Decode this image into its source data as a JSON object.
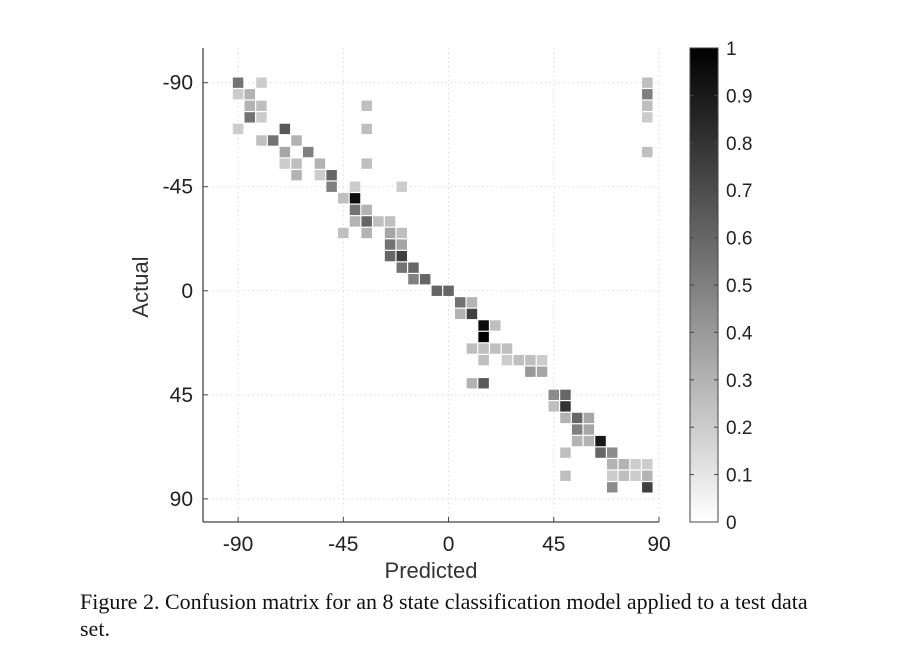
{
  "chart_data": {
    "type": "heatmap",
    "title": "",
    "xlabel": "Predicted",
    "ylabel": "Actual",
    "xlim": [
      -105,
      90
    ],
    "ylim": [
      -105,
      100
    ],
    "y_inverted": true,
    "xticks": [
      -90,
      -45,
      0,
      45,
      90
    ],
    "yticks": [
      -90,
      -45,
      0,
      45,
      90
    ],
    "cell_size": 5,
    "grid": "dotted",
    "colormap": "gray-reversed",
    "colorbar": {
      "min": 0,
      "max": 1,
      "ticks": [
        0,
        0.1,
        0.2,
        0.3,
        0.4,
        0.5,
        0.6,
        0.7,
        0.8,
        0.9,
        1
      ]
    },
    "cells": [
      {
        "x": -90,
        "y": -90,
        "v": 0.55
      },
      {
        "x": -90,
        "y": -85,
        "v": 0.2
      },
      {
        "x": -90,
        "y": -70,
        "v": 0.2
      },
      {
        "x": -85,
        "y": -85,
        "v": 0.3
      },
      {
        "x": -85,
        "y": -80,
        "v": 0.3
      },
      {
        "x": -85,
        "y": -75,
        "v": 0.55
      },
      {
        "x": -80,
        "y": -90,
        "v": 0.2
      },
      {
        "x": -80,
        "y": -80,
        "v": 0.25
      },
      {
        "x": -80,
        "y": -75,
        "v": 0.2
      },
      {
        "x": -80,
        "y": -65,
        "v": 0.25
      },
      {
        "x": -75,
        "y": -65,
        "v": 0.55
      },
      {
        "x": -70,
        "y": -70,
        "v": 0.65
      },
      {
        "x": -70,
        "y": -60,
        "v": 0.35
      },
      {
        "x": -70,
        "y": -55,
        "v": 0.2
      },
      {
        "x": -65,
        "y": -65,
        "v": 0.3
      },
      {
        "x": -65,
        "y": -55,
        "v": 0.25
      },
      {
        "x": -65,
        "y": -50,
        "v": 0.3
      },
      {
        "x": -60,
        "y": -60,
        "v": 0.5
      },
      {
        "x": -55,
        "y": -55,
        "v": 0.3
      },
      {
        "x": -55,
        "y": -50,
        "v": 0.2
      },
      {
        "x": -50,
        "y": -50,
        "v": 0.6
      },
      {
        "x": -50,
        "y": -45,
        "v": 0.5
      },
      {
        "x": -45,
        "y": -40,
        "v": 0.25
      },
      {
        "x": -45,
        "y": -25,
        "v": 0.25
      },
      {
        "x": -40,
        "y": -45,
        "v": 0.2
      },
      {
        "x": -40,
        "y": -40,
        "v": 0.95
      },
      {
        "x": -40,
        "y": -35,
        "v": 0.55
      },
      {
        "x": -40,
        "y": -30,
        "v": 0.3
      },
      {
        "x": -35,
        "y": -80,
        "v": 0.25
      },
      {
        "x": -35,
        "y": -70,
        "v": 0.25
      },
      {
        "x": -35,
        "y": -55,
        "v": 0.25
      },
      {
        "x": -35,
        "y": -35,
        "v": 0.3
      },
      {
        "x": -35,
        "y": -30,
        "v": 0.6
      },
      {
        "x": -35,
        "y": -25,
        "v": 0.3
      },
      {
        "x": -30,
        "y": -30,
        "v": 0.25
      },
      {
        "x": -25,
        "y": -30,
        "v": 0.25
      },
      {
        "x": -25,
        "y": -25,
        "v": 0.35
      },
      {
        "x": -25,
        "y": -20,
        "v": 0.55
      },
      {
        "x": -25,
        "y": -15,
        "v": 0.6
      },
      {
        "x": -20,
        "y": -45,
        "v": 0.2
      },
      {
        "x": -20,
        "y": -25,
        "v": 0.25
      },
      {
        "x": -20,
        "y": -20,
        "v": 0.35
      },
      {
        "x": -20,
        "y": -15,
        "v": 0.75
      },
      {
        "x": -20,
        "y": -10,
        "v": 0.55
      },
      {
        "x": -15,
        "y": -10,
        "v": 0.6
      },
      {
        "x": -15,
        "y": -5,
        "v": 0.5
      },
      {
        "x": -10,
        "y": -5,
        "v": 0.6
      },
      {
        "x": -5,
        "y": 0,
        "v": 0.6
      },
      {
        "x": 0,
        "y": 0,
        "v": 0.6
      },
      {
        "x": 5,
        "y": 5,
        "v": 0.55
      },
      {
        "x": 5,
        "y": 10,
        "v": 0.3
      },
      {
        "x": 10,
        "y": 5,
        "v": 0.3
      },
      {
        "x": 10,
        "y": 10,
        "v": 0.75
      },
      {
        "x": 15,
        "y": 15,
        "v": 0.95
      },
      {
        "x": 15,
        "y": 20,
        "v": 1.0
      },
      {
        "x": 15,
        "y": 25,
        "v": 0.25
      },
      {
        "x": 15,
        "y": 30,
        "v": 0.25
      },
      {
        "x": 15,
        "y": 40,
        "v": 0.65
      },
      {
        "x": 10,
        "y": 25,
        "v": 0.25
      },
      {
        "x": 10,
        "y": 40,
        "v": 0.3
      },
      {
        "x": 20,
        "y": 15,
        "v": 0.25
      },
      {
        "x": 20,
        "y": 25,
        "v": 0.25
      },
      {
        "x": 25,
        "y": 25,
        "v": 0.25
      },
      {
        "x": 25,
        "y": 30,
        "v": 0.2
      },
      {
        "x": 30,
        "y": 30,
        "v": 0.25
      },
      {
        "x": 35,
        "y": 30,
        "v": 0.25
      },
      {
        "x": 35,
        "y": 35,
        "v": 0.4
      },
      {
        "x": 40,
        "y": 30,
        "v": 0.2
      },
      {
        "x": 40,
        "y": 35,
        "v": 0.35
      },
      {
        "x": 45,
        "y": 45,
        "v": 0.45
      },
      {
        "x": 45,
        "y": 50,
        "v": 0.25
      },
      {
        "x": 50,
        "y": 45,
        "v": 0.6
      },
      {
        "x": 50,
        "y": 50,
        "v": 0.8
      },
      {
        "x": 50,
        "y": 55,
        "v": 0.3
      },
      {
        "x": 50,
        "y": 70,
        "v": 0.25
      },
      {
        "x": 50,
        "y": 80,
        "v": 0.25
      },
      {
        "x": 55,
        "y": 55,
        "v": 0.6
      },
      {
        "x": 55,
        "y": 60,
        "v": 0.5
      },
      {
        "x": 55,
        "y": 65,
        "v": 0.3
      },
      {
        "x": 60,
        "y": 55,
        "v": 0.35
      },
      {
        "x": 60,
        "y": 60,
        "v": 0.35
      },
      {
        "x": 60,
        "y": 65,
        "v": 0.3
      },
      {
        "x": 65,
        "y": 65,
        "v": 0.9
      },
      {
        "x": 65,
        "y": 70,
        "v": 0.6
      },
      {
        "x": 70,
        "y": 70,
        "v": 0.45
      },
      {
        "x": 70,
        "y": 75,
        "v": 0.3
      },
      {
        "x": 70,
        "y": 80,
        "v": 0.2
      },
      {
        "x": 70,
        "y": 85,
        "v": 0.45
      },
      {
        "x": 75,
        "y": 75,
        "v": 0.3
      },
      {
        "x": 75,
        "y": 80,
        "v": 0.25
      },
      {
        "x": 80,
        "y": 75,
        "v": 0.2
      },
      {
        "x": 80,
        "y": 80,
        "v": 0.2
      },
      {
        "x": 85,
        "y": -90,
        "v": 0.25
      },
      {
        "x": 85,
        "y": -85,
        "v": 0.5
      },
      {
        "x": 85,
        "y": -80,
        "v": 0.25
      },
      {
        "x": 85,
        "y": -75,
        "v": 0.2
      },
      {
        "x": 85,
        "y": -60,
        "v": 0.25
      },
      {
        "x": 85,
        "y": 75,
        "v": 0.2
      },
      {
        "x": 85,
        "y": 80,
        "v": 0.3
      },
      {
        "x": 85,
        "y": 85,
        "v": 0.75
      }
    ]
  },
  "caption": "Figure 2. Confusion matrix for an 8 state classification model applied to a test data set."
}
